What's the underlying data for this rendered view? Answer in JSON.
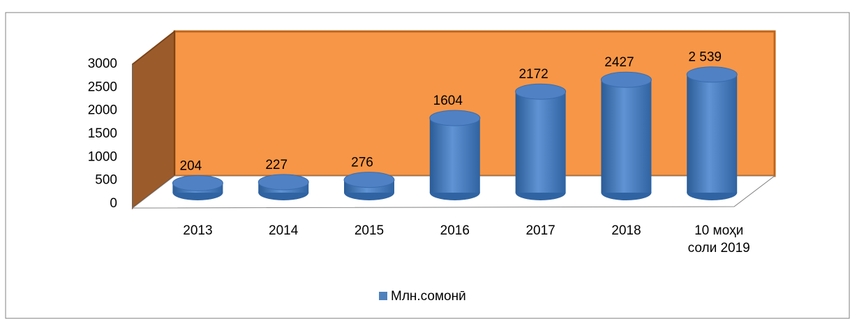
{
  "chart_data": {
    "type": "bar3d",
    "categories": [
      "2013",
      "2014",
      "2015",
      "2016",
      "2017",
      "2018",
      "10 моҳи соли 2019"
    ],
    "series": [
      {
        "name": "Млн.сомонӣ",
        "color": "#4f81bd",
        "values": [
          204,
          227,
          276,
          1604,
          2172,
          2427,
          2539
        ],
        "value_labels": [
          "204",
          "227",
          "276",
          "1604",
          "2172",
          "2427",
          "2 539"
        ]
      }
    ],
    "ylim": [
      0,
      3000
    ],
    "yticks": [
      0,
      500,
      1000,
      1500,
      2000,
      2500,
      3000
    ],
    "grid": false,
    "legend": "bottom",
    "wall_color": "#f79646"
  }
}
